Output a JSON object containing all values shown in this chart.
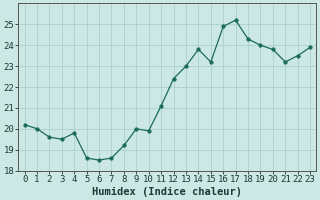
{
  "x": [
    0,
    1,
    2,
    3,
    4,
    5,
    6,
    7,
    8,
    9,
    10,
    11,
    12,
    13,
    14,
    15,
    16,
    17,
    18,
    19,
    20,
    21,
    22,
    23
  ],
  "y": [
    20.2,
    20.0,
    19.6,
    19.5,
    19.8,
    18.6,
    18.5,
    18.6,
    19.2,
    20.0,
    19.9,
    21.1,
    22.4,
    23.0,
    23.8,
    23.2,
    24.9,
    25.2,
    24.3,
    24.0,
    23.8,
    23.2,
    23.5,
    23.9
  ],
  "line_color": "#1a6b5a",
  "marker": "o",
  "marker_size": 2.5,
  "bg_color": "#cce8e4",
  "grid_color": "#aacfcb",
  "xlabel": "Humidex (Indice chaleur)",
  "ylim": [
    18,
    26
  ],
  "xlim": [
    -0.5,
    23.5
  ],
  "yticks": [
    18,
    19,
    20,
    21,
    22,
    23,
    24,
    25
  ],
  "xticks": [
    0,
    1,
    2,
    3,
    4,
    5,
    6,
    7,
    8,
    9,
    10,
    11,
    12,
    13,
    14,
    15,
    16,
    17,
    18,
    19,
    20,
    21,
    22,
    23
  ],
  "tick_fontsize": 6.5,
  "xlabel_fontsize": 7.5,
  "spine_color": "#555555"
}
